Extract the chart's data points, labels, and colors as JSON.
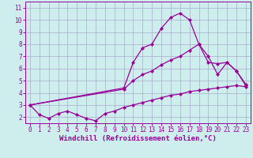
{
  "background_color": "#ceeeed",
  "grid_color": "#aaaacc",
  "line_color": "#990099",
  "marker": "D",
  "markersize": 2.0,
  "linewidth": 0.9,
  "xlabel": "Windchill (Refroidissement éolien,°C)",
  "xlabel_fontsize": 6.5,
  "tick_fontsize": 5.5,
  "xlim": [
    -0.5,
    23.5
  ],
  "ylim": [
    1.5,
    11.5
  ],
  "yticks": [
    2,
    3,
    4,
    5,
    6,
    7,
    8,
    9,
    10,
    11
  ],
  "xticks": [
    0,
    1,
    2,
    3,
    4,
    5,
    6,
    7,
    8,
    9,
    10,
    11,
    12,
    13,
    14,
    15,
    16,
    17,
    18,
    19,
    20,
    21,
    22,
    23
  ],
  "series1_x": [
    0,
    1,
    2,
    3,
    4,
    5,
    6,
    7,
    8,
    9,
    10,
    11,
    12,
    13,
    14,
    15,
    16,
    17,
    18,
    19,
    20,
    21,
    22,
    23
  ],
  "series1_y": [
    3.0,
    2.2,
    1.9,
    2.3,
    2.5,
    2.2,
    1.9,
    1.7,
    2.3,
    2.5,
    2.8,
    3.0,
    3.2,
    3.4,
    3.6,
    3.8,
    3.9,
    4.1,
    4.2,
    4.3,
    4.4,
    4.5,
    4.6,
    4.5
  ],
  "series2_x": [
    0,
    10,
    11,
    12,
    13,
    14,
    15,
    16,
    17,
    18,
    19,
    20,
    21,
    22,
    23
  ],
  "series2_y": [
    3.0,
    4.4,
    6.5,
    7.7,
    8.0,
    9.3,
    10.2,
    10.55,
    10.0,
    8.0,
    7.0,
    5.5,
    6.5,
    5.8,
    4.7
  ],
  "series3_x": [
    0,
    10,
    11,
    12,
    13,
    14,
    15,
    16,
    17,
    18,
    19,
    20,
    21,
    22,
    23
  ],
  "series3_y": [
    3.0,
    4.3,
    5.0,
    5.5,
    5.8,
    6.3,
    6.7,
    7.0,
    7.5,
    8.0,
    6.5,
    6.4,
    6.5,
    5.8,
    4.6
  ]
}
